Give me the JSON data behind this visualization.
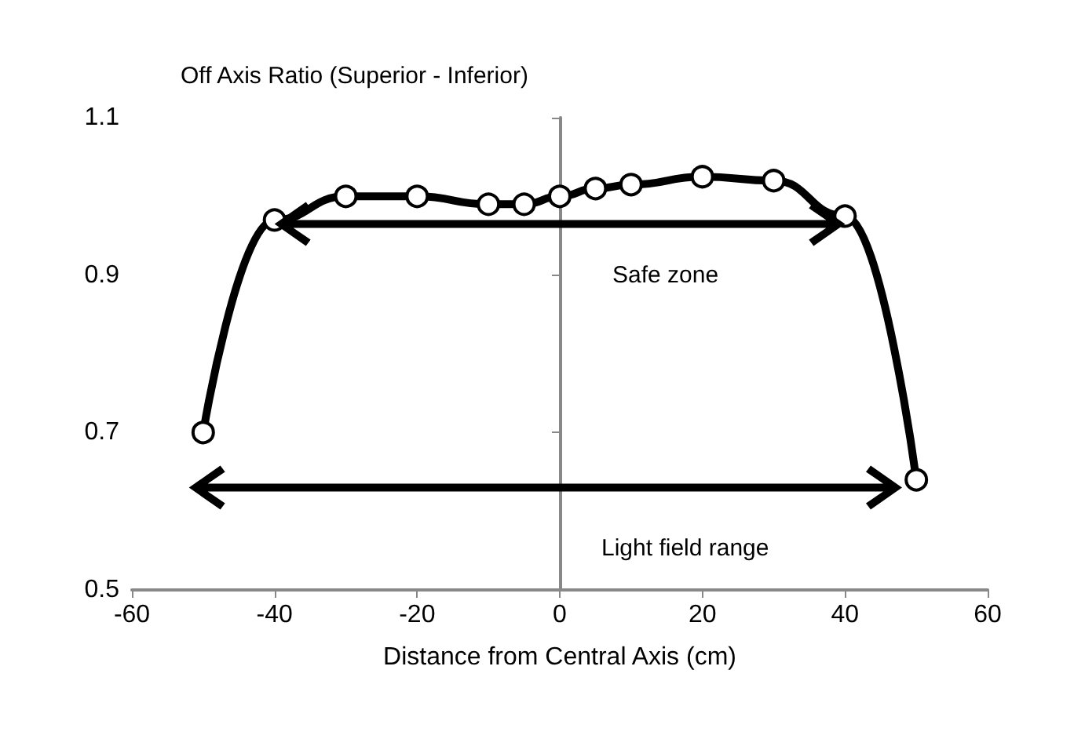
{
  "chart_data": {
    "type": "line",
    "title": "Off Axis Ratio (Superior - Inferior)",
    "xlabel": "Distance from Central Axis (cm)",
    "x": [
      -50,
      -40,
      -30,
      -20,
      -10,
      -5,
      0,
      5,
      10,
      20,
      30,
      40,
      50
    ],
    "series": [
      {
        "color": "#000000",
        "values": [
          0.7,
          0.97,
          1.0,
          1.0,
          0.99,
          0.99,
          1.0,
          1.01,
          1.015,
          1.025,
          1.02,
          0.975,
          0.64
        ]
      }
    ],
    "xlim": [
      -60,
      60
    ],
    "xticks": [
      -60,
      -40,
      -20,
      0,
      20,
      40,
      60
    ],
    "ylim": [
      0.5,
      1.1
    ],
    "yticks": [
      0.5,
      0.7,
      0.9,
      1.1
    ],
    "annotations": [
      "Safe zone",
      "Light field range"
    ],
    "marker": "circle",
    "line_style": "solid"
  }
}
